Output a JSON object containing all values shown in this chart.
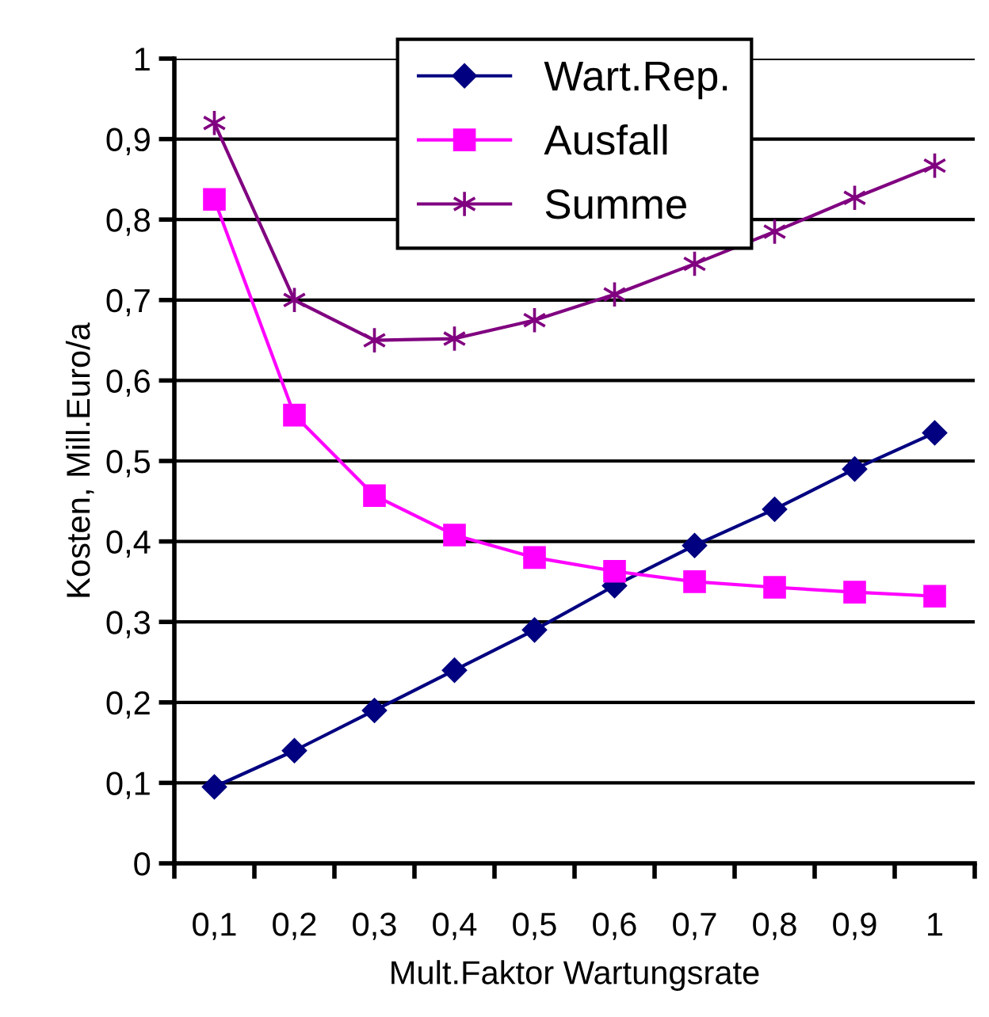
{
  "chart_data": {
    "type": "line",
    "xlabel": "Mult.Faktor Wartungsrate",
    "ylabel": "Kosten, Mill.Euro/a",
    "categories": [
      "0,1",
      "0,2",
      "0,3",
      "0,4",
      "0,5",
      "0,6",
      "0,7",
      "0,8",
      "0,9",
      "1"
    ],
    "series": [
      {
        "name": "Wart.Rep.",
        "color": "#000080",
        "marker": "diamond",
        "values": [
          0.095,
          0.14,
          0.19,
          0.24,
          0.29,
          0.345,
          0.395,
          0.44,
          0.49,
          0.535
        ]
      },
      {
        "name": "Ausfall",
        "color": "#ff00ff",
        "marker": "square",
        "values": [
          0.825,
          0.557,
          0.457,
          0.408,
          0.38,
          0.363,
          0.35,
          0.343,
          0.337,
          0.332
        ]
      },
      {
        "name": "Summe",
        "color": "#800080",
        "marker": "cross",
        "values": [
          0.92,
          0.7,
          0.65,
          0.652,
          0.675,
          0.707,
          0.745,
          0.785,
          0.827,
          0.867
        ]
      }
    ],
    "ylim": [
      0,
      1
    ],
    "yticks": [
      0,
      {
        "value": 0.1,
        "label": "0,1"
      },
      {
        "value": 0.2,
        "label": "0,2"
      },
      {
        "value": 0.3,
        "label": "0,3"
      },
      {
        "value": 0.4,
        "label": "0,4"
      },
      {
        "value": 0.5,
        "label": "0,5"
      },
      {
        "value": 0.6,
        "label": "0,6"
      },
      {
        "value": 0.7,
        "label": "0,7"
      },
      {
        "value": 0.8,
        "label": "0,8"
      },
      {
        "value": 0.9,
        "label": "0,9"
      },
      1
    ],
    "grid": "y",
    "legend": "top",
    "line_style": "solid"
  }
}
